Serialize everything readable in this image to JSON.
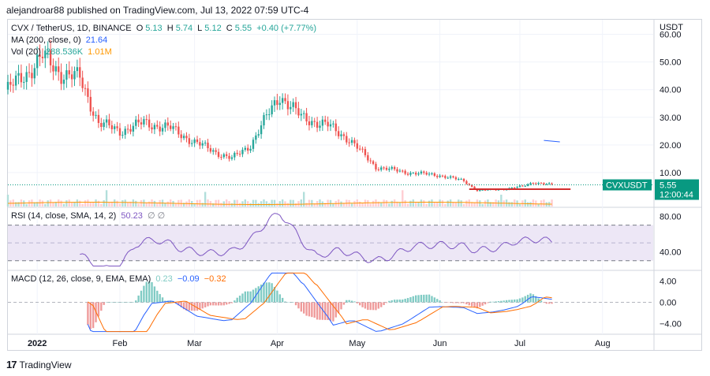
{
  "header": {
    "published_line": "alejandroar88 published on TradingView.com, Jul 13, 2022 07:59 UTC-4"
  },
  "legend": {
    "symbol": "CVX / TetherUS, 1D, BINANCE",
    "o_label": "O",
    "o": "5.13",
    "h_label": "H",
    "h": "5.74",
    "l_label": "L",
    "l": "5.12",
    "c_label": "C",
    "c": "5.55",
    "change": "+0.40 (+7.77%)",
    "ma_label": "MA (200, close, 0)",
    "ma_value": "21.64",
    "vol_label": "Vol (20)",
    "vol_value": "288.536K",
    "vol_ma": "1.01M"
  },
  "price_axis": {
    "currency": "USDT",
    "ticks": [
      "60.00",
      "50.00",
      "40.00",
      "30.00",
      "20.00",
      "10.00"
    ]
  },
  "price_tag": {
    "symbol": "CVXUSDT",
    "price": "5.55",
    "countdown": "12:00:44"
  },
  "rsi": {
    "label": "RSI (14, close, SMA, 14, 2)",
    "value": "50.23",
    "extra": "∅ ∅",
    "ticks": [
      "80.00",
      "40.00"
    ]
  },
  "macd": {
    "label": "MACD (12, 26, close, 9, EMA, EMA)",
    "hist": "0.23",
    "macd": "−0.09",
    "signal": "−0.32",
    "ticks": [
      "4.00",
      "0.00",
      "−4.00"
    ]
  },
  "time_axis": [
    "2022",
    "Feb",
    "Mar",
    "Apr",
    "May",
    "Jun",
    "Jul",
    "Aug"
  ],
  "footer": {
    "brand": "TradingView",
    "logo": "17"
  },
  "colors": {
    "up": "#26a69a",
    "down": "#ef5350",
    "macd_line": "#2962ff",
    "signal_line": "#ff6d00",
    "rsi_line": "#7e57c2",
    "rsi_band": "#ede7f6",
    "tag": "#089981",
    "ma_line": "#2962ff",
    "support_line": "#d32f2f"
  },
  "chart_data": {
    "type": "candlestick",
    "title": "CVX / TetherUS, 1D, BINANCE",
    "y_axis": "USDT",
    "ylim": [
      0,
      65
    ],
    "x_range": [
      "2021-12-21",
      "2022-08-20"
    ],
    "closes": [
      {
        "date": "2021-12-21",
        "close": 40
      },
      {
        "date": "2021-12-28",
        "close": 46
      },
      {
        "date": "2022-01-03",
        "close": 52
      },
      {
        "date": "2022-01-10",
        "close": 46
      },
      {
        "date": "2022-01-17",
        "close": 44
      },
      {
        "date": "2022-01-24",
        "close": 28
      },
      {
        "date": "2022-02-01",
        "close": 25
      },
      {
        "date": "2022-02-10",
        "close": 28
      },
      {
        "date": "2022-02-20",
        "close": 26
      },
      {
        "date": "2022-03-01",
        "close": 21
      },
      {
        "date": "2022-03-10",
        "close": 17
      },
      {
        "date": "2022-03-15",
        "close": 15
      },
      {
        "date": "2022-03-22",
        "close": 20
      },
      {
        "date": "2022-03-28",
        "close": 30
      },
      {
        "date": "2022-04-02",
        "close": 38
      },
      {
        "date": "2022-04-10",
        "close": 30
      },
      {
        "date": "2022-04-20",
        "close": 27
      },
      {
        "date": "2022-04-28",
        "close": 22
      },
      {
        "date": "2022-05-08",
        "close": 12
      },
      {
        "date": "2022-05-20",
        "close": 10
      },
      {
        "date": "2022-06-01",
        "close": 9
      },
      {
        "date": "2022-06-10",
        "close": 7
      },
      {
        "date": "2022-06-15",
        "close": 3.5
      },
      {
        "date": "2022-06-25",
        "close": 4
      },
      {
        "date": "2022-07-02",
        "close": 5
      },
      {
        "date": "2022-07-06",
        "close": 6.5
      },
      {
        "date": "2022-07-13",
        "close": 5.55
      }
    ],
    "support_level": 4,
    "rsi": {
      "ylim": [
        20,
        90
      ],
      "band": [
        30,
        70
      ],
      "last": 50.23
    },
    "macd": {
      "ylim": [
        -6,
        6
      ],
      "last": {
        "hist": 0.23,
        "macd": -0.09,
        "signal": -0.32
      }
    }
  }
}
